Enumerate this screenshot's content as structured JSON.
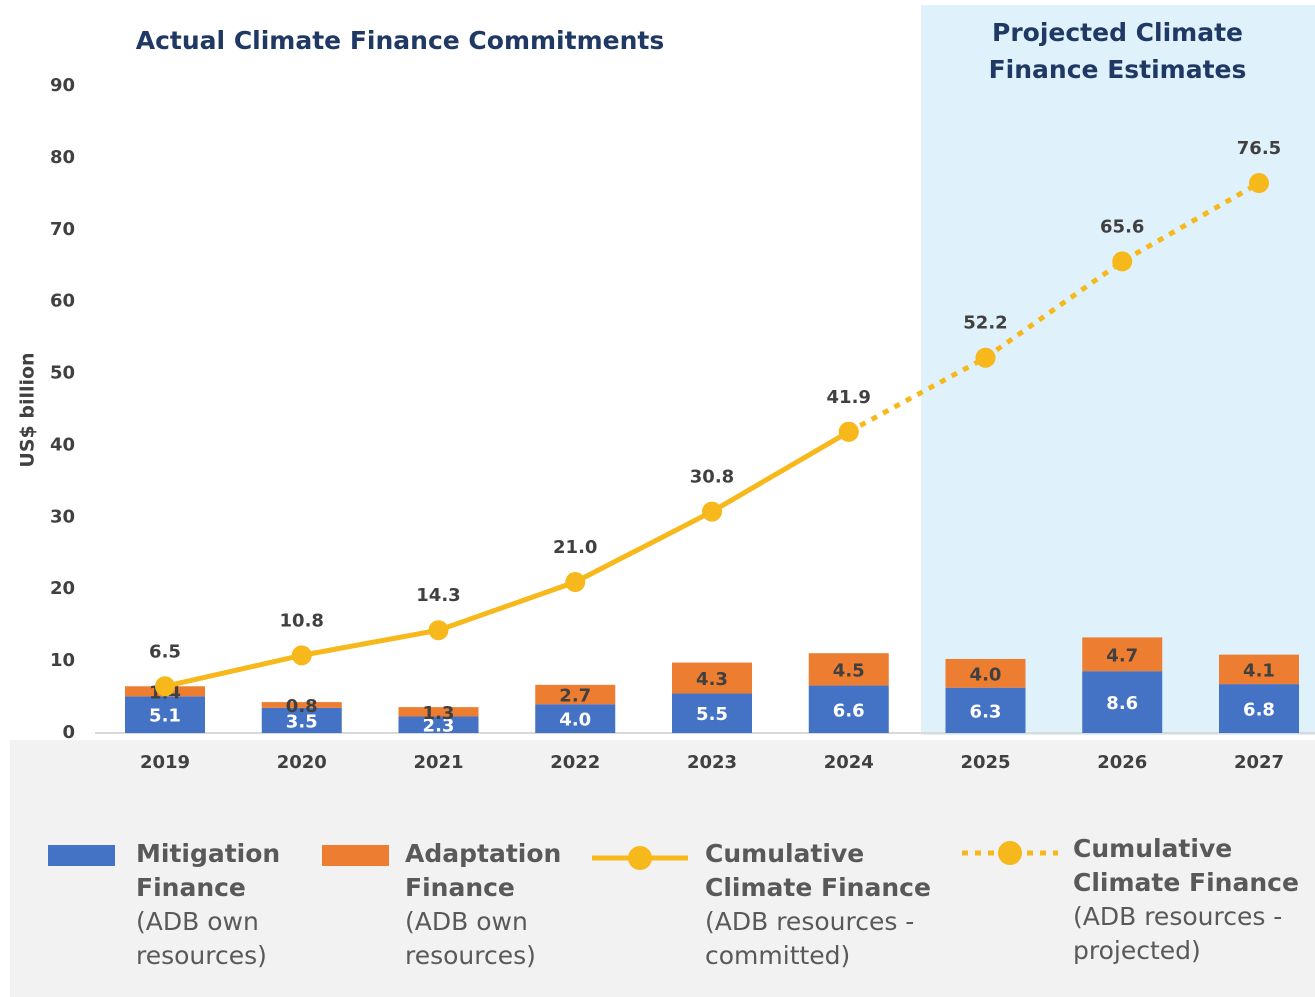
{
  "chart_data": {
    "type": "bar",
    "title": "Actual Climate Finance Commitments",
    "annotation": "Projected Climate Finance Estimates",
    "y_label": "US$ billion",
    "categories": [
      "2019",
      "2020",
      "2021",
      "2022",
      "2023",
      "2024",
      "2025",
      "2026",
      "2027"
    ],
    "ylim": [
      0,
      90
    ],
    "yticks": [
      0,
      10,
      20,
      30,
      40,
      50,
      60,
      70,
      80,
      90
    ],
    "grid": false,
    "projected_from": "2025",
    "series": [
      {
        "name": "Mitigation Finance",
        "description": "(ADB own resources)",
        "type": "bar",
        "color": "#4472c4",
        "values": [
          5.1,
          3.5,
          2.3,
          4.0,
          5.5,
          6.6,
          6.3,
          8.6,
          6.8
        ],
        "value_labels": [
          "5.1",
          "3.5",
          "2.3",
          "4.0",
          "5.5",
          "6.6",
          "6.3",
          "8.6",
          "6.8"
        ]
      },
      {
        "name": "Adaptation Finance",
        "description": "(ADB own resources)",
        "type": "bar",
        "color": "#ed7d31",
        "values": [
          1.4,
          0.8,
          1.3,
          2.7,
          4.3,
          4.5,
          4.0,
          4.7,
          4.1
        ],
        "value_labels": [
          "1.4",
          "0.8",
          "1.3",
          "2.7",
          "4.3",
          "4.5",
          "4.0",
          "4.7",
          "4.1"
        ]
      },
      {
        "name": "Cumulative Climate Finance",
        "description": "(ADB resources - committed)",
        "type": "line",
        "dashed": false,
        "color": "#f6b81b",
        "values": [
          6.5,
          10.8,
          14.3,
          21.0,
          30.8,
          41.9,
          null,
          null,
          null
        ],
        "value_labels": [
          "6.5",
          "10.8",
          "14.3",
          "21.0",
          "30.8",
          "41.9",
          null,
          null,
          null
        ]
      },
      {
        "name": "Cumulative Climate Finance",
        "description": "(ADB resources - projected)",
        "type": "line",
        "dashed": true,
        "color": "#f6b81b",
        "values": [
          null,
          null,
          null,
          null,
          null,
          41.9,
          52.2,
          65.6,
          76.5
        ],
        "value_labels": [
          null,
          null,
          null,
          null,
          null,
          null,
          "52.2",
          "65.6",
          "76.5"
        ]
      }
    ]
  }
}
